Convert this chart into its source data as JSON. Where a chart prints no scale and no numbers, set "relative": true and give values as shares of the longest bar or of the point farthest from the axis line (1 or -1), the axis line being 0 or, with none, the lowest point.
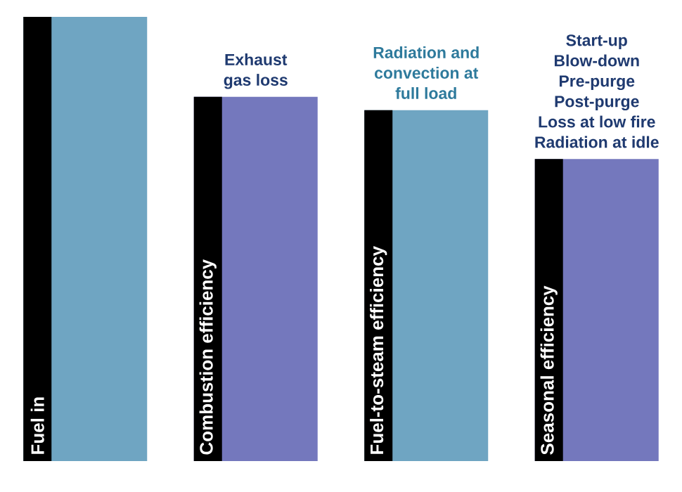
{
  "chart_data": {
    "type": "bar",
    "relative": true,
    "categories": [
      "Fuel in",
      "Combustion efficiency",
      "Fuel-to-steam efficiency",
      "Seasonal efficiency"
    ],
    "values": [
      1,
      0.82,
      0.79,
      0.68
    ],
    "colors": [
      "#6fa5c2",
      "#7478bd",
      "#6fa5c2",
      "#7478bd"
    ],
    "annotations": [
      "Exhaust",
      "gas loss",
      "Radiation and",
      "convection at",
      "full load",
      "Start-up",
      "Blow-down",
      "Pre-purge",
      "Post-purge",
      "Loss at low fire",
      "Radiation at idle"
    ]
  }
}
